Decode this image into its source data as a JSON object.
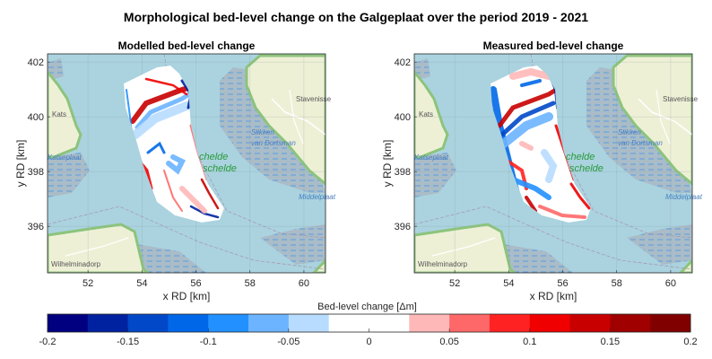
{
  "figure_title": "Morphological bed-level change on the Galgeplaat over the period 2019 - 2021",
  "chart_data": [
    {
      "type": "heatmap",
      "title": "Modelled bed-level change",
      "xlabel": "x RD [km]",
      "ylabel": "y RD [km]",
      "xlim": [
        50.5,
        60.8
      ],
      "ylim": [
        394.3,
        402.3
      ],
      "xticks": [
        52,
        54,
        56,
        58,
        60
      ],
      "yticks": [
        396,
        398,
        400,
        402
      ],
      "grid": true,
      "basemap_labels": [
        "Stavenisse",
        "Slikken",
        "van Dortsman",
        "chelde",
        "schelde",
        "Kats",
        "Katseplaat",
        "Middelplaat",
        "Wilhelminadorp"
      ]
    },
    {
      "type": "heatmap",
      "title": "Measured bed-level change",
      "xlabel": "x RD [km]",
      "ylabel": "y RD [km]",
      "xlim": [
        50.5,
        60.8
      ],
      "ylim": [
        394.3,
        402.3
      ],
      "xticks": [
        52,
        54,
        56,
        58,
        60
      ],
      "yticks": [
        396,
        398,
        400,
        402
      ],
      "grid": true,
      "basemap_labels": [
        "Stavenisse",
        "Slikken",
        "van Dortsman",
        "chelde",
        "schelde",
        "Kats",
        "Katseplaat",
        "Middelplaat",
        "Wilhelminadorp"
      ]
    }
  ],
  "colorbar": {
    "label": "Bed-level change [Δm]",
    "limits": [
      -0.2,
      0.2
    ],
    "step": 0.025,
    "ticks": [
      "-0.2",
      "-0.15",
      "-0.1",
      "-0.05",
      "0",
      "0.05",
      "0.1",
      "0.15",
      "0.2"
    ],
    "colors": [
      "#000080",
      "#0022a0",
      "#0048c8",
      "#0068e8",
      "#2290ff",
      "#6cb4ff",
      "#b8dcff",
      "#ffffff",
      "#ffffff",
      "#ffb8b8",
      "#ff6868",
      "#ff2222",
      "#f00000",
      "#c80000",
      "#a00000",
      "#800000"
    ],
    "location": "bottom"
  }
}
